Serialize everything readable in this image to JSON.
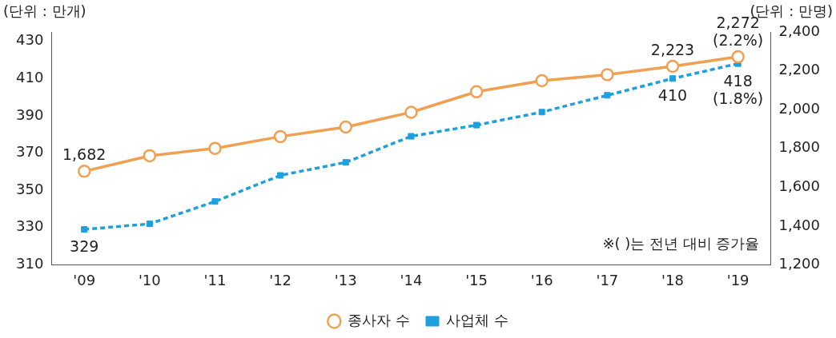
{
  "chart_data": {
    "type": "line",
    "categories": [
      "'09",
      "'10",
      "'11",
      "'12",
      "'13",
      "'14",
      "'15",
      "'16",
      "'17",
      "'18",
      "'19"
    ],
    "ylabel": "(단위 : 만개)",
    "y2label": "(단위 : 만명)",
    "ylim": [
      310,
      435
    ],
    "yticks": [
      310,
      330,
      350,
      370,
      390,
      410,
      430
    ],
    "y2lim": [
      1200,
      2400
    ],
    "y2ticks": [
      {
        "value": 1200,
        "label": "1,200"
      },
      {
        "value": 1400,
        "label": "1,400"
      },
      {
        "value": 1600,
        "label": "1,600"
      },
      {
        "value": 1800,
        "label": "1,800"
      },
      {
        "value": 2000,
        "label": "2,000"
      },
      {
        "value": 2200,
        "label": "2,200"
      },
      {
        "value": 2400,
        "label": "2,400"
      }
    ],
    "series": [
      {
        "name": "종사자 수",
        "color": "#f0a050",
        "axis": "y2",
        "marker": "circle",
        "line_style": "solid",
        "values": [
          1682,
          1762,
          1800,
          1861,
          1910,
          1986,
          2092,
          2149,
          2180,
          2223,
          2272
        ],
        "value_labels": [
          "1,682",
          null,
          null,
          null,
          null,
          null,
          null,
          null,
          null,
          "2,223",
          "2,272\n(2.2%)"
        ]
      },
      {
        "name": "사업체 수",
        "color": "#1ea0e0",
        "axis": "y",
        "marker": "square",
        "line_style": "dashed",
        "values": [
          329,
          332,
          344,
          358,
          365,
          379,
          385,
          392,
          401,
          410,
          418
        ],
        "value_labels": [
          "329",
          null,
          null,
          null,
          null,
          null,
          null,
          null,
          null,
          "410",
          "418\n(1.8%)"
        ]
      }
    ],
    "annotations": [
      "※( )는 전년 대비 증가율"
    ],
    "grid": false,
    "legend": "bottom"
  }
}
